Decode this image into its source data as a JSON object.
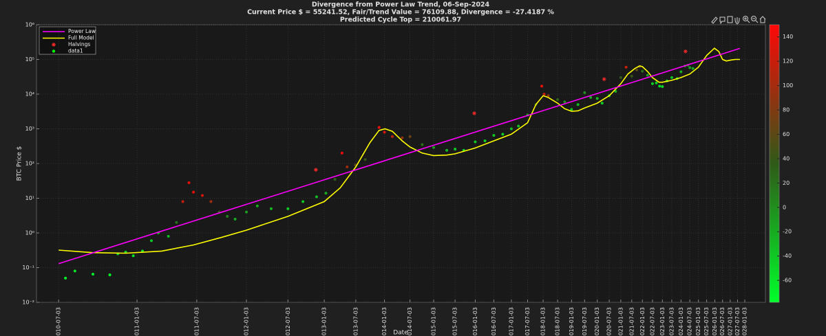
{
  "chart_data": {
    "type": "line",
    "title": "Divergence from Power Law Trend, 06-Sep-2024",
    "subtitle": [
      "Current Price $ = 55241.52, Fair/Trend Value = 76109.88, Divergence = -27.4187 %",
      "Predicted Cycle Top = 210061.97"
    ],
    "xlabel": "Date",
    "ylabel": "BTC Price $",
    "xscale": "log",
    "yscale": "log",
    "grid": true,
    "legend": "upper-left",
    "xlim": [
      503,
      7490
    ],
    "ylim": [
      0.01,
      1000000
    ],
    "yticks": [
      {
        "value": 0.01,
        "label": "10⁻²"
      },
      {
        "value": 0.1,
        "label": "10⁻¹"
      },
      {
        "value": 1,
        "label": "10⁰"
      },
      {
        "value": 10,
        "label": "10¹"
      },
      {
        "value": 100,
        "label": "10²"
      },
      {
        "value": 1000,
        "label": "10³"
      },
      {
        "value": 10000,
        "label": "10⁴"
      },
      {
        "value": 100000,
        "label": "10⁵"
      },
      {
        "value": 1000000,
        "label": "10⁶"
      }
    ],
    "xticks": [
      {
        "value": 546,
        "label": "2010-07-03"
      },
      {
        "value": 730,
        "label": "2011-01-03"
      },
      {
        "value": 911,
        "label": "2011-07-03"
      },
      {
        "value": 1095,
        "label": "2012-01-03"
      },
      {
        "value": 1277,
        "label": "2012-07-03"
      },
      {
        "value": 1461,
        "label": "2013-01-03"
      },
      {
        "value": 1642,
        "label": "2013-07-03"
      },
      {
        "value": 1826,
        "label": "2014-01-03"
      },
      {
        "value": 2007,
        "label": "2014-07-03"
      },
      {
        "value": 2191,
        "label": "2015-01-03"
      },
      {
        "value": 2372,
        "label": "2015-07-03"
      },
      {
        "value": 2556,
        "label": "2016-01-03"
      },
      {
        "value": 2738,
        "label": "2016-07-03"
      },
      {
        "value": 2922,
        "label": "2017-01-03"
      },
      {
        "value": 3103,
        "label": "2017-07-03"
      },
      {
        "value": 3287,
        "label": "2018-01-03"
      },
      {
        "value": 3468,
        "label": "2018-07-03"
      },
      {
        "value": 3652,
        "label": "2019-01-03"
      },
      {
        "value": 3833,
        "label": "2019-07-03"
      },
      {
        "value": 4017,
        "label": "2020-01-03"
      },
      {
        "value": 4199,
        "label": "2020-07-03"
      },
      {
        "value": 4383,
        "label": "2021-01-03"
      },
      {
        "value": 4564,
        "label": "2021-07-03"
      },
      {
        "value": 4748,
        "label": "2022-01-03"
      },
      {
        "value": 4929,
        "label": "2022-07-03"
      },
      {
        "value": 5113,
        "label": "2023-01-03"
      },
      {
        "value": 5294,
        "label": "2023-07-03"
      },
      {
        "value": 5478,
        "label": "2024-01-03"
      },
      {
        "value": 5660,
        "label": "2024-07-03"
      },
      {
        "value": 5844,
        "label": "2025-01-03"
      },
      {
        "value": 6025,
        "label": "2025-07-03"
      },
      {
        "value": 6209,
        "label": "2026-01-03"
      },
      {
        "value": 6390,
        "label": "2026-07-03"
      },
      {
        "value": 6574,
        "label": "2027-01-03"
      },
      {
        "value": 6755,
        "label": "2027-07-03"
      },
      {
        "value": 6939,
        "label": "2028-01-03"
      }
    ],
    "colorbar": {
      "clim": [
        -78,
        150
      ],
      "ticks": [
        -60,
        -40,
        -20,
        0,
        20,
        40,
        60,
        80,
        100,
        120,
        140
      ],
      "colormap": [
        "#00ff2a",
        "#2f5a18",
        "#ff0808"
      ]
    },
    "series": [
      {
        "name": "Power Law",
        "type": "line",
        "color": "#ff00ff",
        "x": [
          546,
          1000,
          2000,
          4000,
          6815
        ],
        "values": [
          0.13,
          3.98,
          201,
          10200,
          208000
        ]
      },
      {
        "name": "Full Model",
        "type": "line",
        "color": "#ffff00",
        "x": [
          546,
          620,
          700,
          800,
          900,
          1000,
          1095,
          1277,
          1461,
          1550,
          1642,
          1730,
          1790,
          1830,
          1880,
          1950,
          2007,
          2100,
          2191,
          2300,
          2372,
          2556,
          2738,
          2922,
          3103,
          3200,
          3287,
          3350,
          3468,
          3560,
          3652,
          3740,
          3833,
          4017,
          4199,
          4383,
          4500,
          4620,
          4700,
          4748,
          4840,
          4929,
          5050,
          5113,
          5294,
          5478,
          5660,
          5844,
          6025,
          6200,
          6300,
          6390,
          6480,
          6574,
          6700,
          6815
        ],
        "values": [
          0.32,
          0.27,
          0.26,
          0.3,
          0.45,
          0.75,
          1.2,
          3,
          8,
          20,
          80,
          400,
          900,
          1000,
          850,
          450,
          300,
          200,
          170,
          175,
          190,
          280,
          450,
          700,
          1500,
          5000,
          9000,
          8000,
          5500,
          3800,
          3200,
          3300,
          4000,
          5500,
          9000,
          20000,
          38000,
          55000,
          65000,
          62000,
          45000,
          30000,
          22000,
          22000,
          25000,
          30000,
          38000,
          60000,
          130000,
          210000,
          170000,
          100000,
          90000,
          95000,
          100000,
          100000
        ]
      },
      {
        "name": "Halvings",
        "type": "scatter",
        "marker": "asterisk",
        "color": "#ff2a2a",
        "x": [
          1416,
          2547,
          4121,
          5570
        ],
        "values": [
          66,
          2800,
          27000,
          170000
        ]
      },
      {
        "name": "data1",
        "type": "scatter",
        "marker": "dot",
        "color": "#00ff00",
        "x": [
          560,
          580,
          620,
          660,
          680,
          700,
          720,
          745,
          770,
          790,
          820,
          845,
          865,
          885,
          900,
          930,
          960,
          990,
          1020,
          1050,
          1095,
          1140,
          1200,
          1277,
          1350,
          1420,
          1470,
          1520,
          1560,
          1590,
          1640,
          1700,
          1790,
          1826,
          1880,
          1950,
          2007,
          2100,
          2191,
          2300,
          2372,
          2450,
          2556,
          2650,
          2738,
          2830,
          2922,
          3000,
          3103,
          3200,
          3270,
          3300,
          3350,
          3468,
          3560,
          3652,
          3740,
          3833,
          3920,
          4017,
          4090,
          4199,
          4300,
          4383,
          4470,
          4564,
          4650,
          4700,
          4748,
          4840,
          4929,
          5000,
          5060,
          5113,
          5200,
          5294,
          5400,
          5478,
          5560,
          5620,
          5660,
          5725
        ],
        "values": [
          0.05,
          0.08,
          0.065,
          0.062,
          0.25,
          0.28,
          0.22,
          0.3,
          0.6,
          1.0,
          0.8,
          2,
          8,
          28,
          15,
          12,
          8,
          4,
          3,
          2.5,
          4,
          6,
          5,
          5,
          8,
          11,
          14,
          35,
          200,
          80,
          90,
          130,
          1100,
          800,
          600,
          550,
          600,
          350,
          290,
          240,
          260,
          240,
          420,
          450,
          650,
          700,
          1000,
          1200,
          2500,
          5000,
          17000,
          10000,
          9000,
          7000,
          6000,
          3600,
          5000,
          11000,
          8000,
          7500,
          5500,
          9000,
          12000,
          30000,
          60000,
          33000,
          50000,
          62000,
          46000,
          35000,
          20000,
          21000,
          17000,
          16500,
          24000,
          30000,
          28000,
          44000,
          65000,
          68000,
          58000,
          55000
        ],
        "color_values": [
          -70,
          -60,
          -70,
          -75,
          -50,
          -50,
          -60,
          -55,
          -40,
          -20,
          -30,
          20,
          120,
          140,
          140,
          130,
          100,
          40,
          10,
          -20,
          -10,
          -20,
          -30,
          -45,
          -40,
          -30,
          -20,
          30,
          140,
          100,
          60,
          40,
          140,
          130,
          110,
          90,
          70,
          20,
          -10,
          -30,
          -40,
          -50,
          -40,
          -45,
          -40,
          -45,
          -30,
          -35,
          -10,
          30,
          140,
          120,
          90,
          30,
          0,
          -40,
          -30,
          0,
          -20,
          -30,
          -45,
          -35,
          -20,
          40,
          120,
          40,
          60,
          70,
          20,
          -10,
          -45,
          -45,
          -55,
          -55,
          -40,
          -35,
          -40,
          -20,
          10,
          15,
          -10,
          -20
        ]
      }
    ]
  }
}
